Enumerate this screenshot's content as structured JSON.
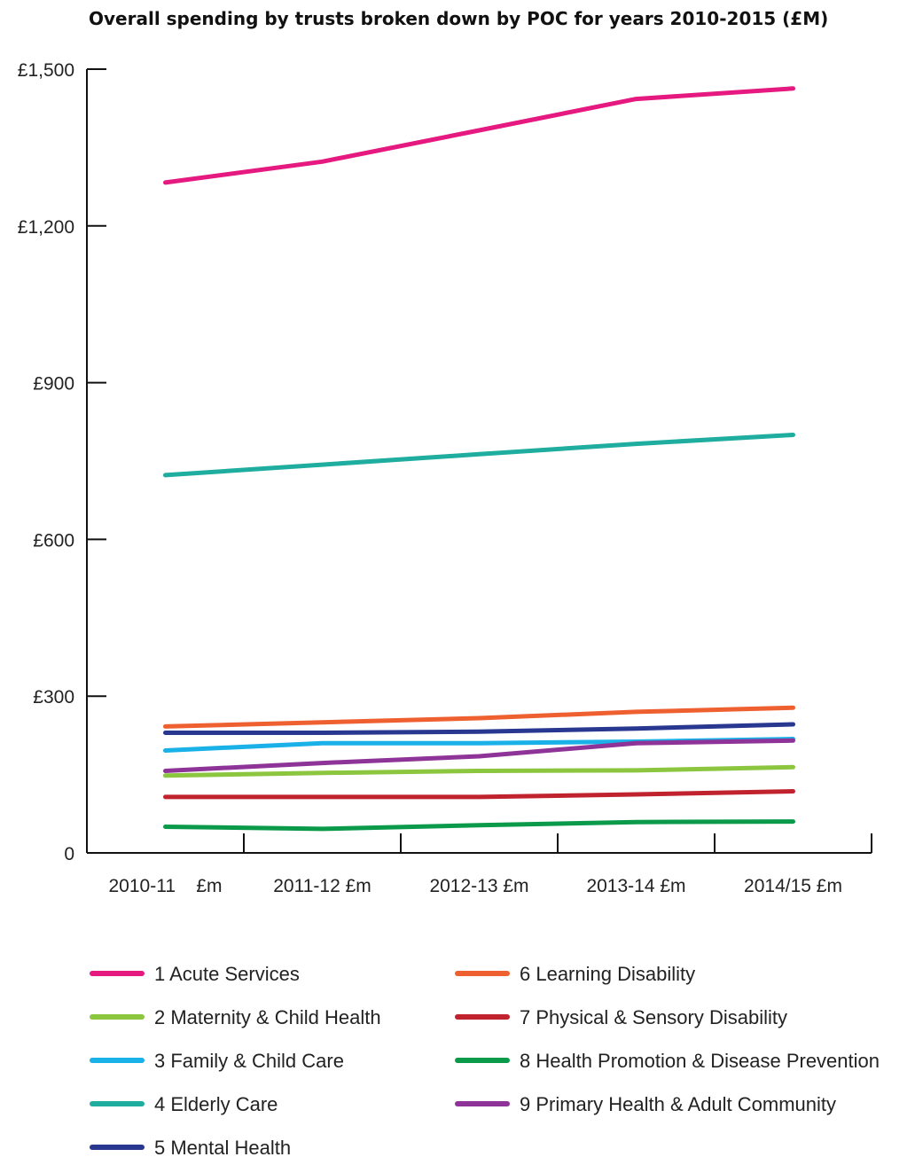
{
  "chart_data": {
    "type": "line",
    "title": "Overall spending by trusts broken down by POC for years 2010-2015 (£M)",
    "xlabel": "",
    "ylabel": "",
    "categories": [
      "2010-11    £m",
      "2011-12 £m",
      "2012-13 £m",
      "2013-14 £m",
      "2014/15 £m"
    ],
    "ylim": [
      0,
      1500
    ],
    "yticks": [
      0,
      300,
      600,
      900,
      1200,
      1500
    ],
    "ytick_labels": [
      "0",
      "£300",
      "£600",
      "£900",
      "£1,200",
      "£1,500"
    ],
    "grid": false,
    "legend_position": "bottom",
    "series": [
      {
        "name": "1 Acute Services",
        "color": "#e5197f",
        "values": [
          1283,
          1323,
          1383,
          1443,
          1463
        ]
      },
      {
        "name": "2 Maternity & Child Health",
        "color": "#8cc63f",
        "values": [
          148,
          153,
          157,
          158,
          164
        ]
      },
      {
        "name": "3 Family & Child Care",
        "color": "#1ab0e8",
        "values": [
          196,
          210,
          210,
          213,
          218
        ]
      },
      {
        "name": "4 Elderly Care",
        "color": "#1fada0",
        "values": [
          723,
          743,
          763,
          783,
          800
        ]
      },
      {
        "name": "5 Mental Health",
        "color": "#28378f",
        "values": [
          230,
          230,
          232,
          238,
          246
        ]
      },
      {
        "name": "6 Learning Disability",
        "color": "#ef6030",
        "values": [
          242,
          250,
          258,
          270,
          278
        ]
      },
      {
        "name": "7 Physical & Sensory Disability",
        "color": "#c0232e",
        "values": [
          107,
          107,
          107,
          112,
          118
        ]
      },
      {
        "name": "8 Health Promotion & Disease Prevention",
        "color": "#0a9a4a",
        "values": [
          50,
          46,
          53,
          59,
          60
        ]
      },
      {
        "name": "9 Primary Health & Adult Community",
        "color": "#8e3397",
        "values": [
          157,
          172,
          185,
          210,
          215
        ]
      }
    ]
  }
}
